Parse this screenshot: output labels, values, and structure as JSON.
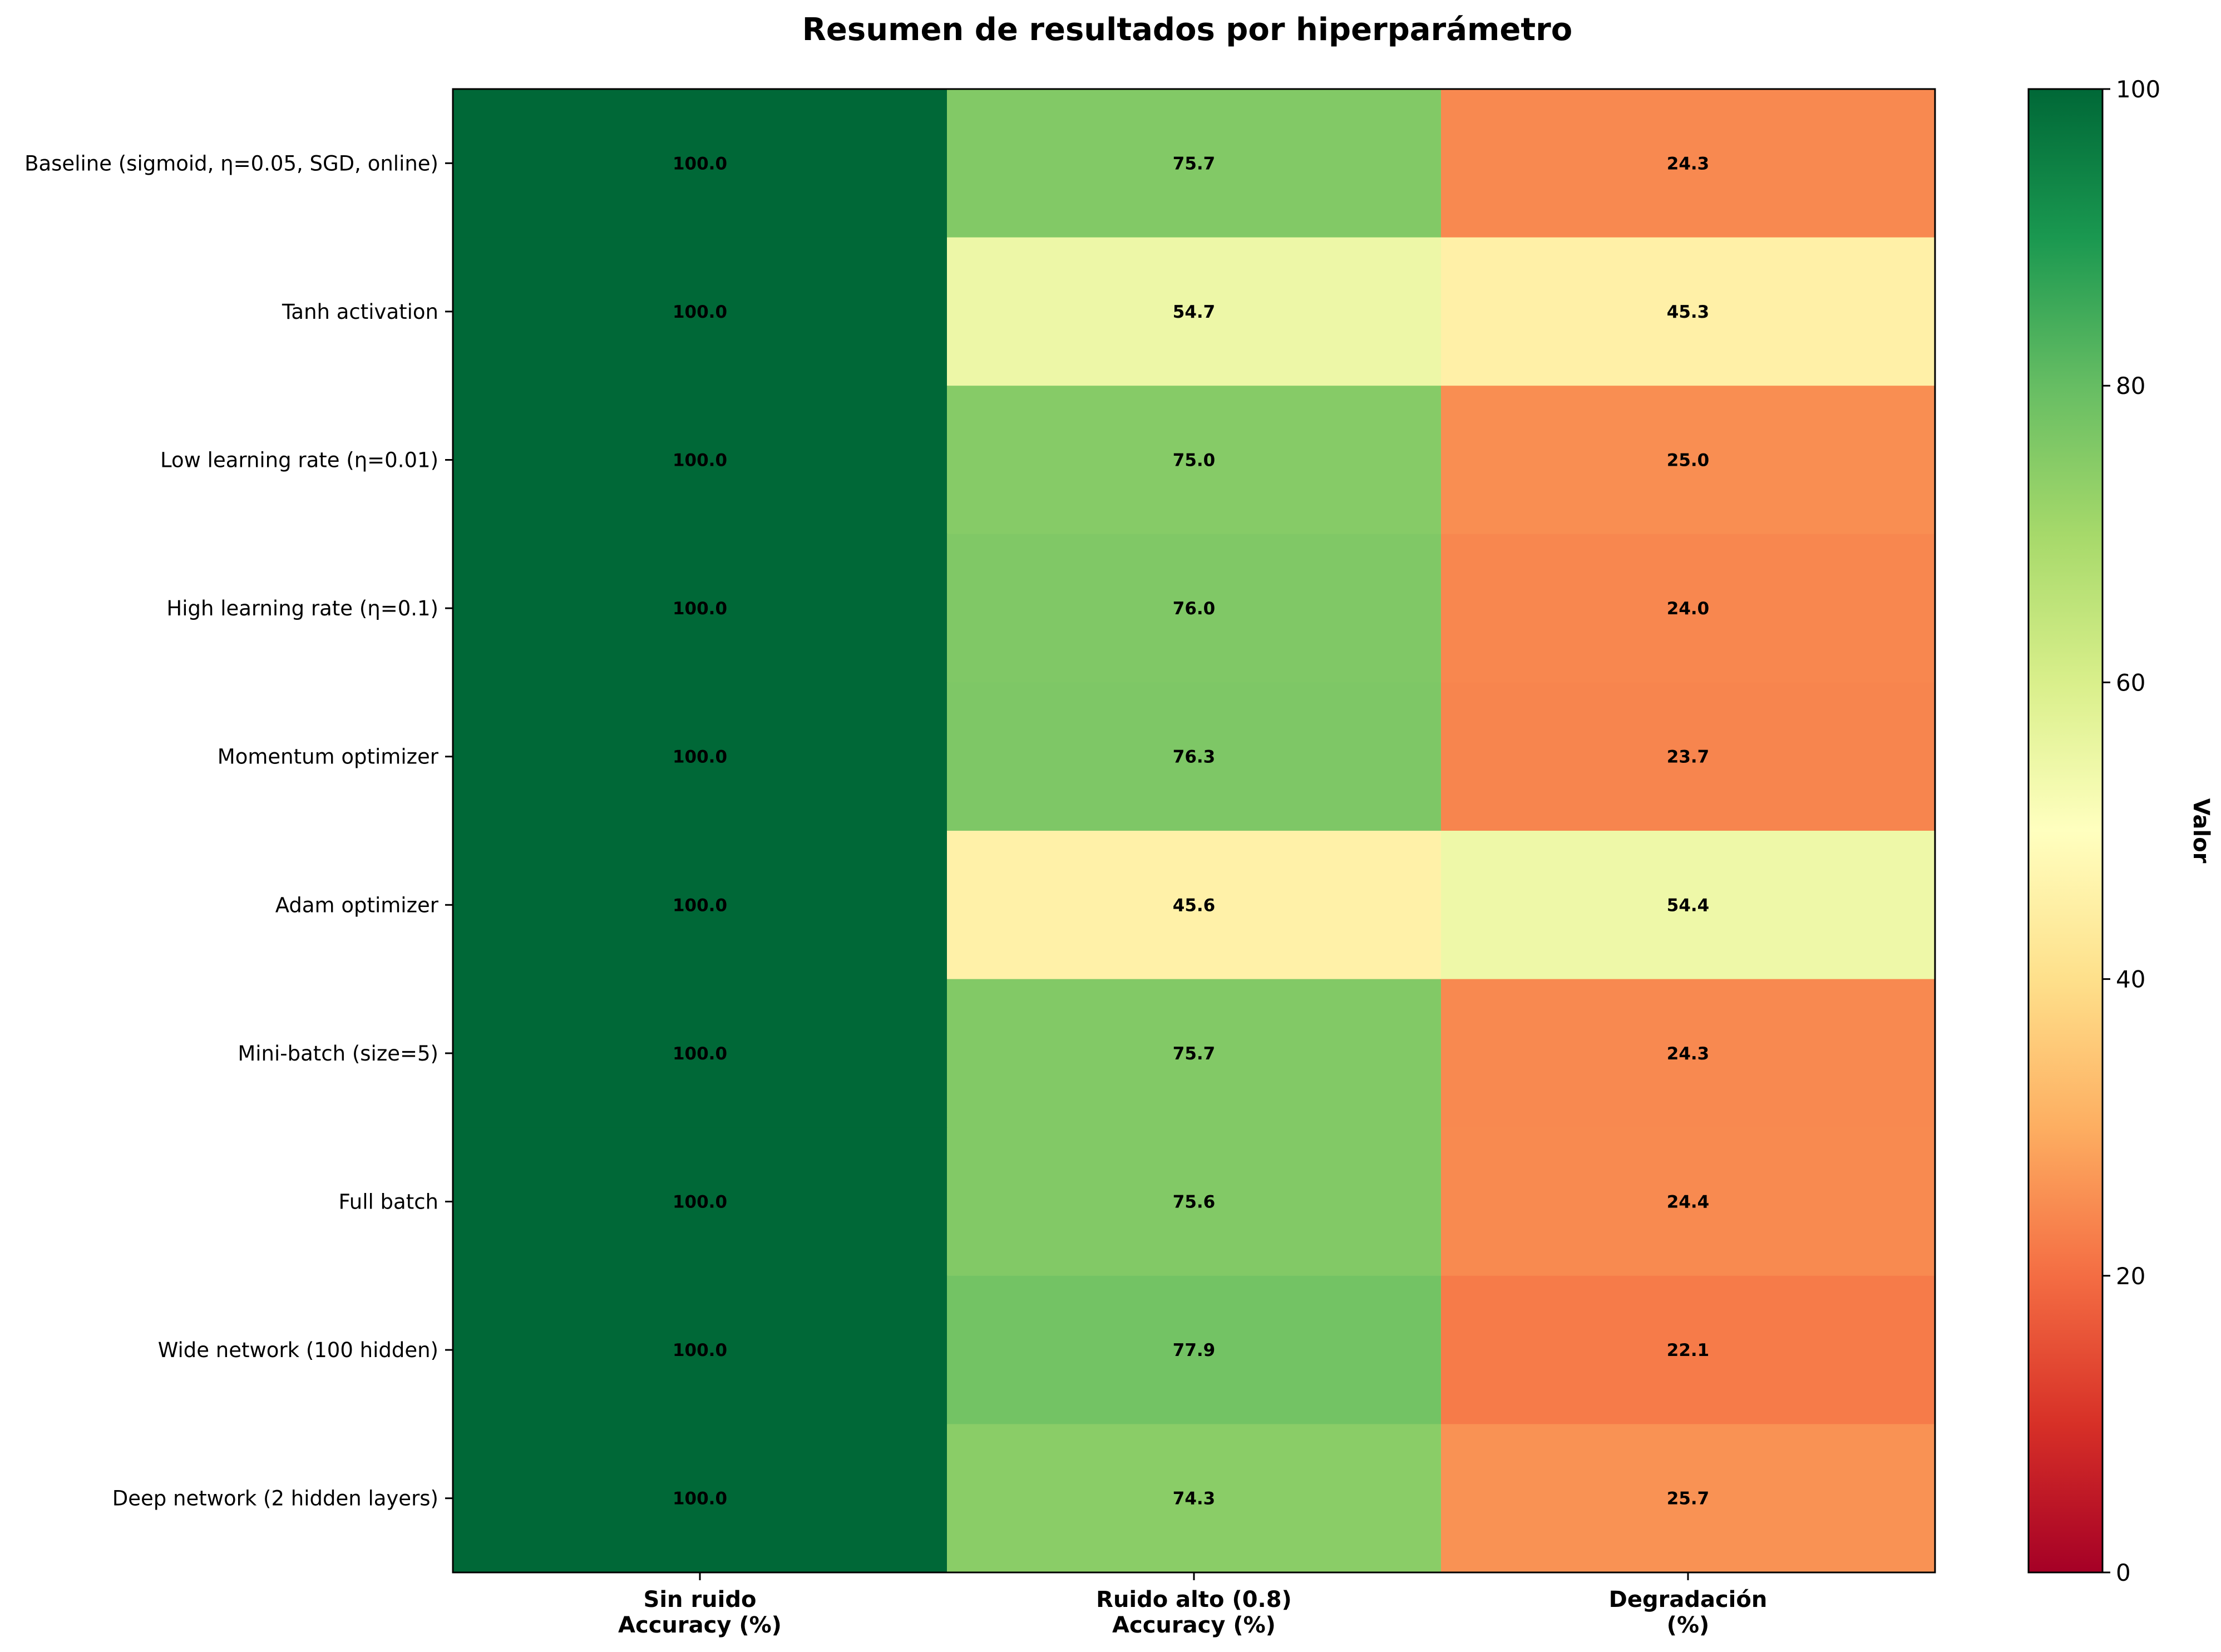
{
  "chart_data": {
    "type": "heatmap",
    "title": "Resumen de resultados por hiperparámetro",
    "rows": [
      "Baseline (sigmoid, η=0.05, SGD, online)",
      "Tanh activation",
      "Low learning rate (η=0.01)",
      "High learning rate (η=0.1)",
      "Momentum optimizer",
      "Adam optimizer",
      "Mini-batch (size=5)",
      "Full batch",
      "Wide network (100 hidden)",
      "Deep network (2 hidden layers)"
    ],
    "columns": [
      [
        "Sin ruido",
        "Accuracy (%)"
      ],
      [
        "Ruido alto (0.8)",
        "Accuracy (%)"
      ],
      [
        "Degradación",
        "(%)"
      ]
    ],
    "values": [
      [
        100.0,
        75.7,
        24.3
      ],
      [
        100.0,
        54.7,
        45.3
      ],
      [
        100.0,
        75.0,
        25.0
      ],
      [
        100.0,
        76.0,
        24.0
      ],
      [
        100.0,
        76.3,
        23.7
      ],
      [
        100.0,
        45.6,
        54.4
      ],
      [
        100.0,
        75.7,
        24.3
      ],
      [
        100.0,
        75.6,
        24.4
      ],
      [
        100.0,
        77.9,
        22.1
      ],
      [
        100.0,
        74.3,
        25.7
      ]
    ],
    "colormap": "RdYlGn",
    "colormap_stops": [
      "#a50026",
      "#d73027",
      "#f46d43",
      "#fdae61",
      "#fee08b",
      "#ffffbf",
      "#d9ef8b",
      "#a6d96a",
      "#66bd63",
      "#1a9850",
      "#006837"
    ],
    "value_range": [
      0,
      100
    ],
    "colorbar_label": "Valor",
    "colorbar_ticks": [
      0,
      20,
      40,
      60,
      80,
      100
    ]
  }
}
